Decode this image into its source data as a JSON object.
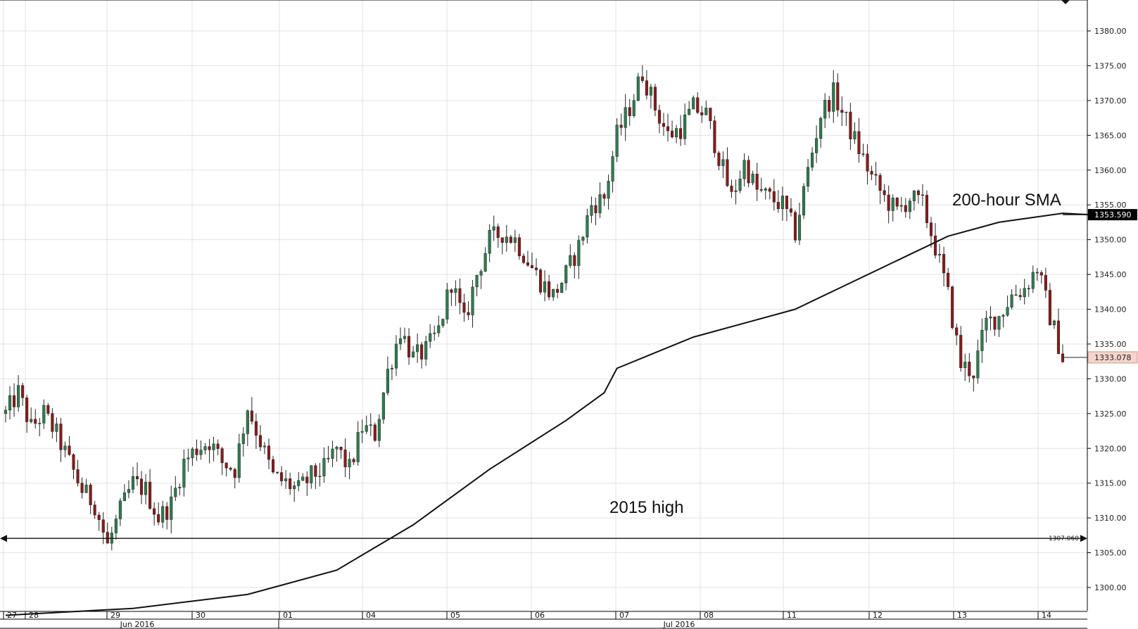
{
  "chart_data": {
    "type": "candlestick",
    "instrument_hint": "",
    "y_axis": {
      "ylim": [
        1297.5,
        1385.0
      ],
      "ticks": [
        "1300.00",
        "1305.00",
        "1310.00",
        "1315.00",
        "1320.00",
        "1325.00",
        "1330.00",
        "1335.00",
        "1340.00",
        "1345.00",
        "1350.00",
        "1355.00",
        "1360.00",
        "1365.00",
        "1370.00",
        "1375.00",
        "1380.00"
      ],
      "tick_values": [
        1300,
        1305,
        1310,
        1315,
        1320,
        1325,
        1330,
        1335,
        1340,
        1345,
        1350,
        1355,
        1360,
        1365,
        1370,
        1375,
        1380
      ],
      "side": "right"
    },
    "x_axis": {
      "day_labels": [
        "27",
        "28",
        "29",
        "30",
        "01",
        "04",
        "05",
        "06",
        "07",
        "08",
        "11",
        "12",
        "13",
        "14"
      ],
      "month_labels": [
        "Jun 2016",
        "Jul 2016"
      ]
    },
    "grid": true,
    "annotations": {
      "sma_label": "200-hour SMA",
      "high_label": "2015 high",
      "sma_value_tag": "1353.590",
      "last_price_tag": "1333.078",
      "hline_value_tag": "1307.060"
    },
    "hline_value": 1307.06,
    "last_price": 1333.078,
    "sma_last": 1353.59,
    "colors": {
      "up": "#2e7d4f",
      "down": "#8b1a1a",
      "sma": "#111111",
      "last_price_bg": "#f6d5cc",
      "sma_tag_bg": "#000000"
    },
    "price_path": [
      [
        0,
        1325
      ],
      [
        1,
        1328
      ],
      [
        2,
        1323
      ],
      [
        3,
        1325
      ],
      [
        4,
        1322
      ],
      [
        5,
        1318
      ],
      [
        6,
        1314
      ],
      [
        7,
        1312
      ],
      [
        8,
        1306
      ],
      [
        9,
        1311
      ],
      [
        10,
        1315
      ],
      [
        11,
        1314
      ],
      [
        12,
        1310
      ],
      [
        13,
        1312
      ],
      [
        14,
        1318
      ],
      [
        15,
        1320
      ],
      [
        16,
        1321
      ],
      [
        17,
        1318
      ],
      [
        18,
        1317
      ],
      [
        19,
        1326
      ],
      [
        20,
        1321
      ],
      [
        21,
        1316
      ],
      [
        22,
        1315
      ],
      [
        23,
        1314
      ],
      [
        24,
        1316
      ],
      [
        25,
        1317
      ],
      [
        26,
        1320
      ],
      [
        27,
        1317
      ],
      [
        28,
        1323
      ],
      [
        29,
        1322
      ],
      [
        30,
        1331
      ],
      [
        31,
        1337
      ],
      [
        32,
        1333
      ],
      [
        33,
        1334
      ],
      [
        34,
        1337
      ],
      [
        35,
        1344
      ],
      [
        36,
        1338
      ],
      [
        37,
        1345
      ],
      [
        38,
        1350
      ],
      [
        39,
        1351
      ],
      [
        40,
        1350
      ],
      [
        41,
        1347
      ],
      [
        42,
        1344
      ],
      [
        43,
        1342
      ],
      [
        44,
        1345
      ],
      [
        45,
        1349
      ],
      [
        46,
        1355
      ],
      [
        47,
        1356
      ],
      [
        48,
        1365
      ],
      [
        49,
        1369
      ],
      [
        50,
        1374
      ],
      [
        51,
        1369
      ],
      [
        52,
        1365
      ],
      [
        53,
        1366
      ],
      [
        54,
        1369
      ],
      [
        55,
        1368
      ],
      [
        56,
        1362
      ],
      [
        57,
        1356
      ],
      [
        58,
        1361
      ],
      [
        59,
        1357
      ],
      [
        60,
        1356
      ],
      [
        61,
        1355
      ],
      [
        62,
        1351
      ],
      [
        63,
        1360
      ],
      [
        64,
        1368
      ],
      [
        65,
        1371
      ],
      [
        66,
        1367
      ],
      [
        67,
        1363
      ],
      [
        68,
        1359
      ],
      [
        69,
        1356
      ],
      [
        70,
        1354
      ],
      [
        71,
        1356
      ],
      [
        72,
        1355
      ],
      [
        73,
        1349
      ],
      [
        74,
        1342
      ],
      [
        75,
        1332
      ],
      [
        76,
        1331
      ],
      [
        77,
        1338
      ],
      [
        78,
        1339
      ],
      [
        79,
        1342
      ],
      [
        80,
        1343
      ],
      [
        81,
        1346
      ],
      [
        82,
        1339
      ],
      [
        83,
        1333
      ]
    ],
    "sma_path": [
      [
        0,
        1296
      ],
      [
        10,
        1297
      ],
      [
        19,
        1299
      ],
      [
        26,
        1302.5
      ],
      [
        32,
        1309
      ],
      [
        38,
        1317
      ],
      [
        44,
        1324
      ],
      [
        47,
        1328
      ],
      [
        48,
        1331.5
      ],
      [
        50,
        1333
      ],
      [
        54,
        1336
      ],
      [
        58,
        1338
      ],
      [
        62,
        1340
      ],
      [
        66,
        1343.5
      ],
      [
        70,
        1347
      ],
      [
        74,
        1350.5
      ],
      [
        78,
        1352.5
      ],
      [
        83,
        1353.8
      ],
      [
        85,
        1353.6
      ]
    ]
  }
}
